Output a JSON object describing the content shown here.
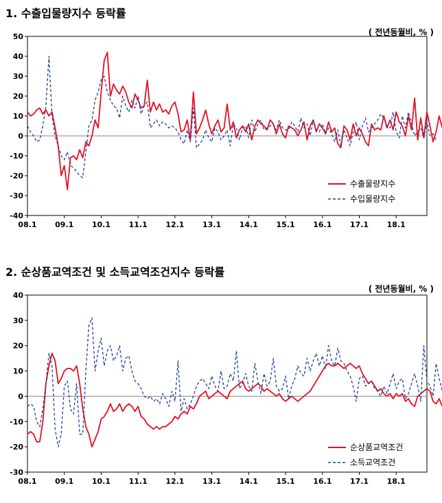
{
  "chart_data": [
    {
      "type": "line",
      "title": "1. 수출입물량지수 등락률",
      "unit": "( 전년동월비, % )",
      "ylim": [
        -40,
        50
      ],
      "yticks": [
        -40,
        -30,
        -20,
        -10,
        0,
        10,
        20,
        30,
        40,
        50
      ],
      "x_start": "2008-01",
      "x_ticks": [
        "08.1",
        "09.1",
        "10.1",
        "11.1",
        "12.1",
        "13.1",
        "14.1",
        "15.1",
        "16.1",
        "17.1",
        "18.1"
      ],
      "legend_position": "bottom-right",
      "grid": false,
      "series": [
        {
          "name": "수출물량지수",
          "color": "#e4101f",
          "dash": "solid",
          "values": [
            12,
            10,
            11,
            13,
            14,
            11,
            13,
            10,
            12,
            4,
            -5,
            -20,
            -15,
            -27,
            -11,
            -10,
            -12,
            -7,
            -11,
            -3,
            -5,
            0,
            8,
            4,
            22,
            38,
            42,
            20,
            26,
            23,
            21,
            25,
            22,
            17,
            14,
            21,
            18,
            14,
            15,
            28,
            12,
            17,
            13,
            16,
            12,
            13,
            11,
            15,
            17,
            11,
            2,
            3,
            8,
            -2,
            22,
            1,
            4,
            8,
            13,
            6,
            1,
            5,
            8,
            2,
            4,
            16,
            3,
            7,
            -1,
            3,
            5,
            2,
            6,
            -2,
            5,
            8,
            6,
            5,
            3,
            8,
            6,
            1,
            6,
            1,
            -1,
            5,
            4,
            3,
            0,
            3,
            7,
            -2,
            5,
            8,
            2,
            6,
            4,
            1,
            7,
            2,
            4,
            -4,
            -6,
            5,
            3,
            -2,
            6,
            0,
            4,
            1,
            -3,
            -5,
            6,
            3,
            4,
            3,
            10,
            4,
            8,
            3,
            12,
            7,
            5,
            0,
            10,
            3,
            19,
            -2,
            9,
            -1,
            12,
            5,
            -3,
            2,
            10,
            4,
            8,
            13,
            11
          ]
        },
        {
          "name": "수입물량지수",
          "color": "#1f3f9b",
          "dash": "4 3",
          "values": [
            5,
            2,
            0,
            -3,
            -2,
            5,
            15,
            40,
            10,
            0,
            -5,
            -10,
            -12,
            -8,
            -15,
            -16,
            -18,
            -20,
            -21,
            -8,
            5,
            8,
            18,
            22,
            28,
            30,
            22,
            18,
            15,
            14,
            9,
            20,
            15,
            12,
            18,
            14,
            20,
            11,
            15,
            17,
            4,
            6,
            8,
            5,
            7,
            6,
            4,
            5,
            4,
            2,
            -2,
            -4,
            3,
            -3,
            14,
            -6,
            -4,
            -2,
            3,
            -1,
            -3,
            4,
            2,
            -2,
            0,
            3,
            -5,
            6,
            4,
            -2,
            4,
            5,
            -1,
            8,
            2,
            6,
            8,
            3,
            4,
            5,
            6,
            3,
            8,
            4,
            3,
            3,
            7,
            5,
            2,
            9,
            4,
            6,
            0,
            8,
            3,
            2,
            6,
            1,
            4,
            1,
            -3,
            3,
            -5,
            3,
            -1,
            -5,
            2,
            7,
            -2,
            5,
            9,
            2,
            4,
            6,
            8,
            11,
            9,
            5,
            4,
            12,
            2,
            -1,
            10,
            4,
            12,
            6,
            0,
            2,
            4,
            -1,
            7,
            0,
            1,
            -2
          ]
        }
      ]
    },
    {
      "type": "line",
      "title": "2. 순상품교역조건 및 소득교역조건지수 등락률",
      "unit": "( 전년동월비, % )",
      "ylim": [
        -30,
        40
      ],
      "yticks": [
        -30,
        -20,
        -10,
        0,
        10,
        20,
        30,
        40
      ],
      "x_start": "2008-01",
      "x_ticks": [
        "08.1",
        "09.1",
        "10.1",
        "11.1",
        "12.1",
        "13.1",
        "14.1",
        "15.1",
        "16.1",
        "17.1",
        "18.1"
      ],
      "legend_position": "bottom-right",
      "grid": false,
      "series": [
        {
          "name": "순상품교역조건",
          "color": "#e4101f",
          "dash": "solid",
          "values": [
            -15,
            -14,
            -15,
            -18,
            -18,
            -10,
            5,
            12,
            17,
            14,
            5,
            7,
            10,
            11,
            11,
            10,
            12,
            5,
            -5,
            -12,
            -15,
            -20,
            -17,
            -14,
            -9,
            -8,
            -6,
            -3,
            -6,
            -5,
            -3,
            -6,
            -4,
            -3,
            -4,
            -6,
            -4,
            -8,
            -9,
            -11,
            -12,
            -13,
            -12,
            -13,
            -12,
            -12,
            -11,
            -10,
            -8,
            -9,
            -7,
            -6,
            -7,
            -4,
            -5,
            -3,
            0,
            1,
            2,
            -1,
            0,
            1,
            2,
            1,
            0,
            -1,
            2,
            3,
            4,
            5,
            6,
            3,
            2,
            3,
            4,
            5,
            4,
            2,
            3,
            2,
            1,
            0,
            1,
            -1,
            -2,
            -1,
            0,
            -1,
            -2,
            -1,
            0,
            1,
            2,
            4,
            6,
            8,
            10,
            12,
            13,
            12,
            12,
            13,
            12,
            11,
            12,
            13,
            12,
            11,
            12,
            9,
            7,
            5,
            6,
            4,
            2,
            3,
            1,
            0,
            1,
            -1,
            1,
            0,
            1,
            -2,
            -1,
            -3,
            -4,
            0,
            1,
            2,
            3,
            2,
            -2,
            -3,
            -1,
            -4,
            -6,
            -8,
            -9
          ]
        },
        {
          "name": "소득교역조건",
          "color": "#1f3f9b",
          "dash": "4 3",
          "values": [
            -4,
            -3,
            -4,
            -10,
            -12,
            -5,
            5,
            17,
            12,
            -13,
            -20,
            -15,
            4,
            6,
            -5,
            -7,
            5,
            -15,
            -15,
            10,
            28,
            31,
            10,
            18,
            23,
            12,
            18,
            20,
            14,
            16,
            20,
            10,
            15,
            16,
            10,
            6,
            5,
            3,
            0,
            -1,
            0,
            -2,
            -1,
            -3,
            1,
            -1,
            -4,
            2,
            -2,
            14,
            -6,
            -1,
            -5,
            -3,
            0,
            4,
            6,
            7,
            5,
            3,
            8,
            4,
            2,
            10,
            3,
            4,
            9,
            6,
            18,
            3,
            5,
            9,
            4,
            2,
            13,
            6,
            1,
            9,
            4,
            6,
            15,
            4,
            2,
            3,
            8,
            -1,
            4,
            7,
            12,
            9,
            8,
            15,
            10,
            14,
            17,
            12,
            16,
            11,
            20,
            14,
            12,
            19,
            14,
            13,
            10,
            8,
            4,
            -2,
            7,
            8,
            4,
            5,
            6,
            3,
            2,
            0,
            4,
            1,
            5,
            9,
            3,
            6,
            7,
            -1,
            1,
            5,
            9,
            4,
            -2,
            20,
            6,
            4,
            0,
            13,
            7,
            2,
            -1,
            4,
            8,
            1,
            2
          ]
        }
      ]
    }
  ]
}
